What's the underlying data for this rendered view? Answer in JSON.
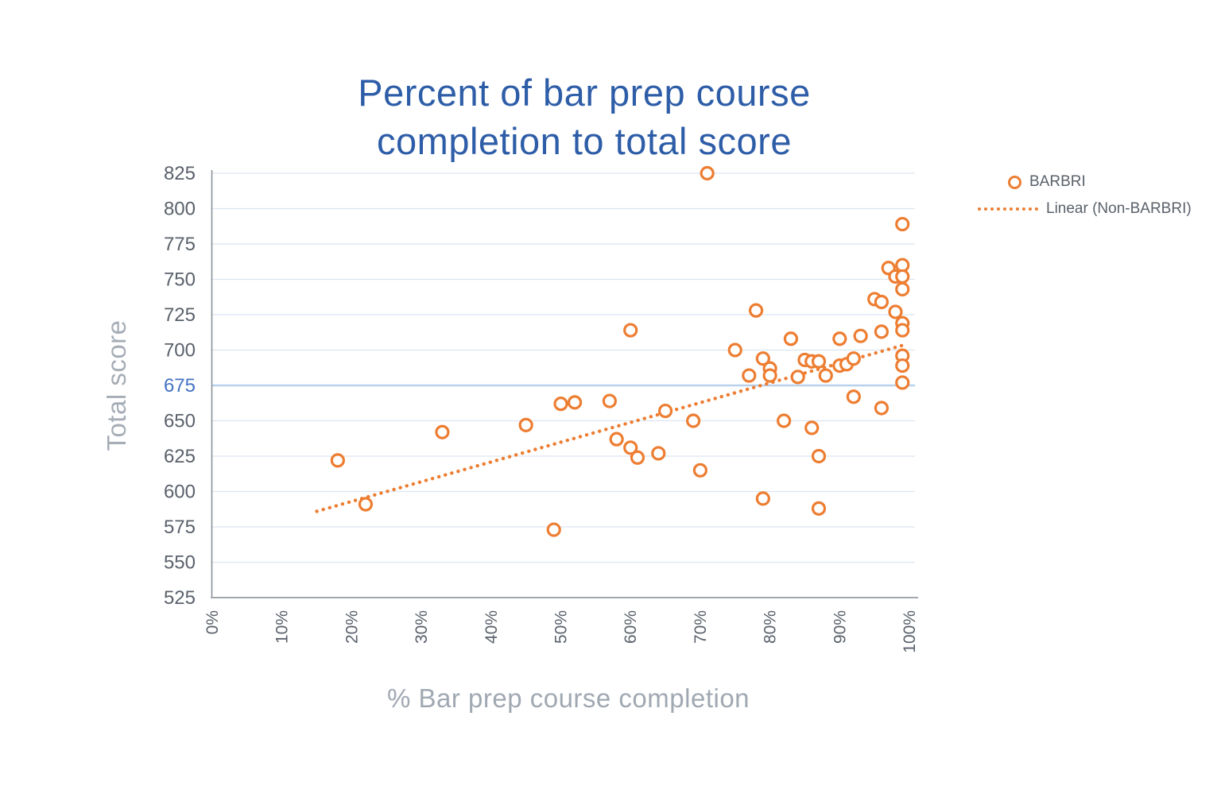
{
  "title": {
    "line1": "Percent of bar prep course",
    "line2": "completion to total score"
  },
  "colors": {
    "accent_orange": "#ED7D31",
    "title_blue": "#2E5DA8",
    "highlight_tick_blue": "#4472C4",
    "tick_gray": "#5A616B",
    "axis_title_gray": "#A3AAB4",
    "gridline": "#DCE5F1",
    "gridline_highlight": "#B9D1ED",
    "axis_line": "#9098A0"
  },
  "legend": {
    "items": [
      {
        "label": "BARBRI",
        "marker": "open-circle"
      },
      {
        "label": "Linear (Non-BARBRI)",
        "marker": "dotted-line"
      }
    ]
  },
  "chart_data": {
    "type": "scatter",
    "title": "Percent of bar prep course completion to total score",
    "xlabel": "% Bar prep course completion",
    "ylabel": "Total score",
    "xlim": [
      0,
      100
    ],
    "ylim": [
      525,
      825
    ],
    "x_tick_labels": [
      "0%",
      "10%",
      "20%",
      "30%",
      "40%",
      "50%",
      "60%",
      "70%",
      "80%",
      "90%",
      "100%"
    ],
    "x_tick_values": [
      0,
      10,
      20,
      30,
      40,
      50,
      60,
      70,
      80,
      90,
      100
    ],
    "y_ticks": [
      825,
      800,
      775,
      750,
      725,
      700,
      675,
      650,
      625,
      600,
      575,
      550,
      525
    ],
    "highlighted_y_tick": 675,
    "grid": "horizontal",
    "legend_position": "top-right",
    "series": [
      {
        "name": "BARBRI",
        "type": "scatter",
        "marker": "open-circle",
        "color": "#ED7D31",
        "points": [
          [
            18,
            622
          ],
          [
            22,
            591
          ],
          [
            33,
            642
          ],
          [
            45,
            647
          ],
          [
            49,
            573
          ],
          [
            50,
            662
          ],
          [
            52,
            663
          ],
          [
            57,
            664
          ],
          [
            58,
            637
          ],
          [
            60,
            714
          ],
          [
            60,
            631
          ],
          [
            61,
            624
          ],
          [
            64,
            627
          ],
          [
            65,
            657
          ],
          [
            69,
            650
          ],
          [
            70,
            615
          ],
          [
            71,
            825
          ],
          [
            75,
            700
          ],
          [
            77,
            682
          ],
          [
            78,
            728
          ],
          [
            79,
            694
          ],
          [
            79,
            595
          ],
          [
            80,
            687
          ],
          [
            80,
            682
          ],
          [
            82,
            650
          ],
          [
            83,
            708
          ],
          [
            84,
            681
          ],
          [
            85,
            693
          ],
          [
            86,
            692
          ],
          [
            86,
            645
          ],
          [
            87,
            692
          ],
          [
            87,
            625
          ],
          [
            87,
            588
          ],
          [
            88,
            682
          ],
          [
            90,
            708
          ],
          [
            90,
            689
          ],
          [
            91,
            690
          ],
          [
            92,
            694
          ],
          [
            92,
            667
          ],
          [
            93,
            710
          ],
          [
            95,
            736
          ],
          [
            96,
            734
          ],
          [
            96,
            713
          ],
          [
            96,
            659
          ],
          [
            97,
            758
          ],
          [
            98,
            752
          ],
          [
            98,
            727
          ],
          [
            99,
            789
          ],
          [
            99,
            760
          ],
          [
            99,
            752
          ],
          [
            99,
            743
          ],
          [
            99,
            719
          ],
          [
            99,
            714
          ],
          [
            99,
            696
          ],
          [
            99,
            689
          ],
          [
            99,
            677
          ]
        ]
      },
      {
        "name": "Linear (Non-BARBRI)",
        "type": "trendline",
        "style": "dotted",
        "color": "#ED7D31",
        "endpoints": [
          [
            15,
            586
          ],
          [
            99.5,
            704
          ]
        ]
      }
    ]
  }
}
